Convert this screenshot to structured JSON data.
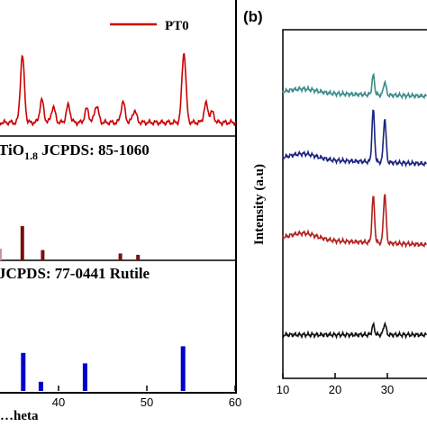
{
  "chart_data": [
    {
      "panel": "a",
      "type": "line",
      "xlabel": "…heta",
      "ylabel": "",
      "xlim": [
        0,
        60
      ],
      "x_ticks": [
        "40",
        "50",
        "60"
      ],
      "legend": {
        "entries": [
          "PT0"
        ],
        "placement": "top-right"
      },
      "series": [
        {
          "name": "PT0",
          "color": "#cc0000",
          "peaks": [
            {
              "x": 30.2,
              "height": 0.22
            },
            {
              "x": 35.9,
              "height": 0.78
            },
            {
              "x": 38.1,
              "height": 0.26
            },
            {
              "x": 39.4,
              "height": 0.18
            },
            {
              "x": 41.1,
              "height": 0.2
            },
            {
              "x": 43.2,
              "height": 0.16
            },
            {
              "x": 44.3,
              "height": 0.2
            },
            {
              "x": 47.3,
              "height": 0.24
            },
            {
              "x": 48.6,
              "height": 0.14
            },
            {
              "x": 54.2,
              "height": 0.82
            },
            {
              "x": 56.7,
              "height": 0.22
            },
            {
              "x": 57.4,
              "height": 0.12
            }
          ]
        }
      ],
      "references": [
        {
          "label_parts": [
            "TiO",
            "1.8",
            " JCPDS: 85-1060"
          ],
          "color": "#7a1010",
          "sticks": [
            {
              "x": 35.9,
              "height": 1.0
            },
            {
              "x": 38.2,
              "height": 0.3
            },
            {
              "x": 47.0,
              "height": 0.2
            },
            {
              "x": 49.0,
              "height": 0.16
            }
          ]
        },
        {
          "label": "JCPDS: 77-0441 Rutile",
          "color": "#0000cc",
          "sticks": [
            {
              "x": 36.0,
              "height": 0.62
            },
            {
              "x": 38.0,
              "height": 0.15
            },
            {
              "x": 43.0,
              "height": 0.45
            },
            {
              "x": 54.1,
              "height": 0.73
            }
          ]
        }
      ]
    },
    {
      "panel": "b",
      "panel_label": "(b)",
      "type": "line",
      "ylabel": "Intensity (a.u)",
      "xlim": [
        10,
        40
      ],
      "x_ticks": [
        "10",
        "20",
        "30"
      ],
      "series": [
        {
          "color": "#3a8c8a",
          "baseline": 0.18,
          "hump": 0.05,
          "peaks": [
            {
              "x": 27.3,
              "height": 0.1
            },
            {
              "x": 29.5,
              "height": 0.07
            }
          ]
        },
        {
          "color": "#1a237e",
          "baseline": 0.37,
          "hump": 0.07,
          "peaks": [
            {
              "x": 27.3,
              "height": 0.27
            },
            {
              "x": 29.5,
              "height": 0.23
            }
          ]
        },
        {
          "color": "#b22020",
          "baseline": 0.6,
          "hump": 0.08,
          "peaks": [
            {
              "x": 27.3,
              "height": 0.24
            },
            {
              "x": 29.5,
              "height": 0.26
            }
          ]
        },
        {
          "color": "#111111",
          "baseline": 0.875,
          "hump": 0.0,
          "peaks": [
            {
              "x": 27.3,
              "height": 0.05
            },
            {
              "x": 29.5,
              "height": 0.06
            }
          ]
        }
      ]
    }
  ]
}
